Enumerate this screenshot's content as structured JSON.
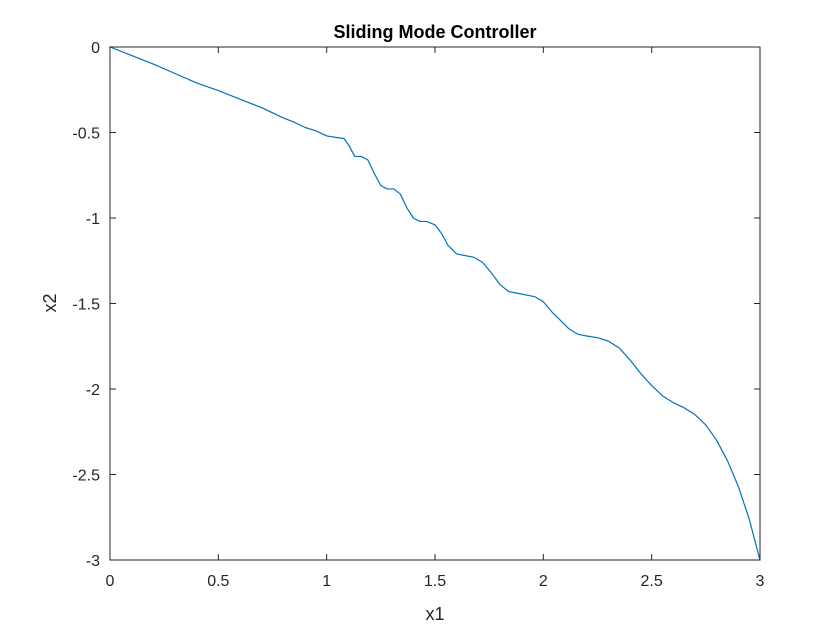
{
  "chart_data": {
    "type": "line",
    "title": "Sliding Mode Controller",
    "xlabel": "x1",
    "ylabel": "x2",
    "xlim": [
      0,
      3
    ],
    "ylim": [
      -3,
      0
    ],
    "xticks": [
      0,
      0.5,
      1,
      1.5,
      2,
      2.5,
      3
    ],
    "xtick_labels": [
      "0",
      "0.5",
      "1",
      "1.5",
      "2",
      "2.5",
      "3"
    ],
    "yticks": [
      0,
      -0.5,
      -1,
      -1.5,
      -2,
      -2.5,
      -3
    ],
    "ytick_labels": [
      "0",
      "-0.5",
      "-1",
      "-1.5",
      "-2",
      "-2.5",
      "-3"
    ],
    "grid": false,
    "line_color": "#0072BD",
    "axis_color": "#262626",
    "series": [
      {
        "x": [
          0,
          0.1,
          0.2,
          0.3,
          0.4,
          0.5,
          0.6,
          0.7,
          0.8,
          0.85,
          0.9,
          0.95,
          1.0,
          1.05,
          1.08,
          1.1,
          1.13,
          1.16,
          1.19,
          1.22,
          1.25,
          1.28,
          1.31,
          1.34,
          1.37,
          1.4,
          1.43,
          1.46,
          1.5,
          1.53,
          1.56,
          1.6,
          1.64,
          1.68,
          1.72,
          1.76,
          1.8,
          1.84,
          1.88,
          1.92,
          1.96,
          2.0,
          2.04,
          2.08,
          2.12,
          2.16,
          2.2,
          2.25,
          2.3,
          2.35,
          2.4,
          2.45,
          2.5,
          2.55,
          2.6,
          2.65,
          2.7,
          2.75,
          2.8,
          2.85,
          2.9,
          2.95,
          3.0
        ],
        "y": [
          0,
          -0.05,
          -0.1,
          -0.155,
          -0.21,
          -0.255,
          -0.305,
          -0.355,
          -0.415,
          -0.44,
          -0.47,
          -0.49,
          -0.52,
          -0.53,
          -0.535,
          -0.57,
          -0.64,
          -0.64,
          -0.66,
          -0.74,
          -0.81,
          -0.83,
          -0.83,
          -0.86,
          -0.94,
          -1.0,
          -1.02,
          -1.02,
          -1.04,
          -1.09,
          -1.16,
          -1.21,
          -1.22,
          -1.23,
          -1.26,
          -1.32,
          -1.39,
          -1.43,
          -1.44,
          -1.45,
          -1.46,
          -1.49,
          -1.55,
          -1.6,
          -1.65,
          -1.68,
          -1.69,
          -1.7,
          -1.72,
          -1.76,
          -1.83,
          -1.91,
          -1.98,
          -2.04,
          -2.08,
          -2.11,
          -2.15,
          -2.21,
          -2.3,
          -2.42,
          -2.57,
          -2.76,
          -3.0
        ]
      }
    ]
  }
}
